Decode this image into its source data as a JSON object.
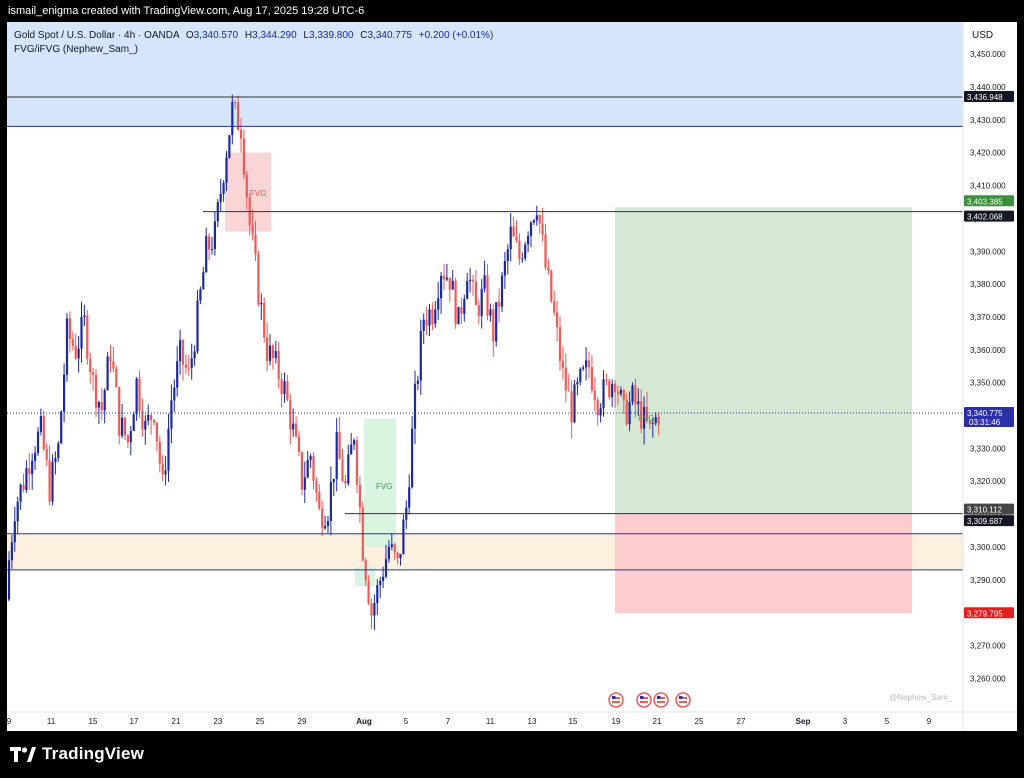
{
  "header": {
    "caption": "ismail_enigma created with TradingView.com, Aug 17, 2025 19:28 UTC-6"
  },
  "footer": {
    "brand": "TradingView"
  },
  "chart": {
    "symbol": "Gold Spot / U.S. Dollar · 4h · OANDA",
    "ohlc": {
      "o_label": "O",
      "o": "3,340.570",
      "h_label": "H",
      "h": "3,344.290",
      "l_label": "L",
      "l": "3,339.800",
      "c_label": "C",
      "c": "3,340.775",
      "change": "+0.200 (+0.01%)"
    },
    "indicator": "FVG/iFVG (Nephew_Sam_)",
    "currency": "USD",
    "watermark": "@Nephew_Sam_",
    "fvg_label": "FVG",
    "price_tags": [
      {
        "value": "3,436.948",
        "price": 3436.948,
        "color": "#131722"
      },
      {
        "value": "3,403.385",
        "price": 3403.385,
        "color": "#3b8f3b"
      },
      {
        "value": "3,402.068",
        "price": 3402.068,
        "color": "#131722"
      },
      {
        "value": "3,340.775",
        "price": 3340.775,
        "color": "#2b2fa8"
      },
      {
        "value": "3,310.112",
        "price": 3310.112,
        "color": "#454545"
      },
      {
        "value": "3,309.687",
        "price": 3309.687,
        "color": "#131722"
      },
      {
        "value": "3,279.795",
        "price": 3279.795,
        "color": "#e01f1f"
      }
    ],
    "countdown": "03:31:46",
    "colors": {
      "up": "#1b2a9e",
      "down": "#ee5a55",
      "supply_zone": "#d5e5fb",
      "demand_zone": "#fdf0df",
      "profit": "#d5e8d4",
      "loss": "#fdcccc"
    }
  },
  "chart_data": {
    "type": "candlestick",
    "title": "Gold Spot / U.S. Dollar · 4h · OANDA",
    "ylabel": "USD",
    "ylim": [
      3250,
      3460
    ],
    "y_ticks": [
      "3,260.000",
      "3,270.000",
      "3,280.000",
      "3,290.000",
      "3,300.000",
      "3,310.000",
      "3,320.000",
      "3,330.000",
      "3,340.000",
      "3,350.000",
      "3,360.000",
      "3,370.000",
      "3,380.000",
      "3,390.000",
      "3,400.000",
      "3,410.000",
      "3,420.000",
      "3,430.000",
      "3,440.000",
      "3,450.000"
    ],
    "x_ticks": [
      "9",
      "11",
      "15",
      "17",
      "21",
      "23",
      "25",
      "29",
      "Aug",
      "5",
      "7",
      "11",
      "13",
      "15",
      "19",
      "21",
      "25",
      "27",
      "Sep",
      "3",
      "5",
      "9"
    ],
    "close_path": [
      3288,
      3312,
      3320,
      3330,
      3335,
      3318,
      3330,
      3365,
      3360,
      3368,
      3350,
      3342,
      3360,
      3338,
      3332,
      3350,
      3336,
      3342,
      3318,
      3345,
      3358,
      3352,
      3370,
      3390,
      3395,
      3415,
      3433,
      3428,
      3398,
      3378,
      3360,
      3355,
      3348,
      3335,
      3320,
      3328,
      3310,
      3312,
      3330,
      3318,
      3335,
      3300,
      3280,
      3290,
      3300,
      3294,
      3312,
      3345,
      3370,
      3372,
      3385,
      3382,
      3368,
      3385,
      3372,
      3378,
      3365,
      3380,
      3395,
      3388,
      3398,
      3405,
      3385,
      3370,
      3352,
      3342,
      3350,
      3355,
      3345,
      3348,
      3352,
      3340,
      3345,
      3340,
      3335,
      3340.775
    ],
    "levels": [
      {
        "name": "supply zone",
        "from": 3428,
        "to": 3459
      },
      {
        "name": "demand zone",
        "from": 3293,
        "to": 3304
      },
      {
        "name": "line",
        "value": 3436.948
      },
      {
        "name": "line",
        "value": 3402.068
      },
      {
        "name": "line",
        "value": 3310.112
      },
      {
        "name": "line",
        "value": 3309.687
      }
    ],
    "position": {
      "entry": 3310.112,
      "target": 3403.385,
      "stop": 3279.795
    },
    "fvg_boxes": [
      {
        "from": 3396,
        "to": 3420
      },
      {
        "from": 3300,
        "to": 3339
      },
      {
        "from": 3288,
        "to": 3294
      }
    ],
    "events": [
      "US",
      "US",
      "US",
      "US"
    ]
  }
}
